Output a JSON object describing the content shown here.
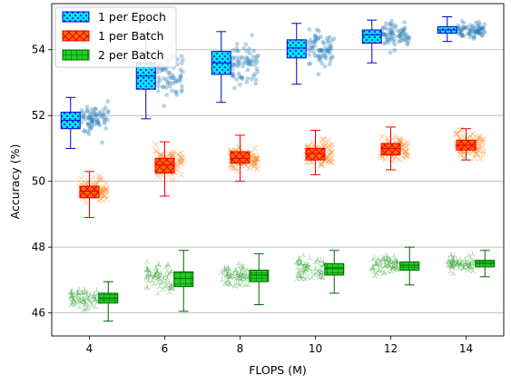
{
  "chart_data": {
    "type": "box",
    "xlabel": "FLOPS (M)",
    "ylabel": "Accuracy (%)",
    "xticks": [
      4,
      6,
      8,
      10,
      12,
      14
    ],
    "yticks": [
      46,
      48,
      50,
      52,
      54
    ],
    "xlim": [
      3,
      15
    ],
    "ylim": [
      45.3,
      55.4
    ],
    "grid": "y",
    "legend_position": "top-left",
    "series": [
      {
        "name": "1 per Epoch",
        "box_color": "#00e5ff",
        "edge_color": "#0000cc",
        "hatch": "dots",
        "scatter_color": "#1f77b4",
        "scatter_marker": "circle",
        "offset": -0.5,
        "boxes": [
          {
            "x": 4,
            "whislo": 51.0,
            "q1": 51.6,
            "med": 51.85,
            "q3": 52.1,
            "whishi": 52.55
          },
          {
            "x": 6,
            "whislo": 51.9,
            "q1": 52.8,
            "med": 53.2,
            "q3": 53.6,
            "whishi": 54.5
          },
          {
            "x": 8,
            "whislo": 52.4,
            "q1": 53.25,
            "med": 53.6,
            "q3": 53.95,
            "whishi": 54.55
          },
          {
            "x": 10,
            "whislo": 52.95,
            "q1": 53.75,
            "med": 54.05,
            "q3": 54.3,
            "whishi": 54.8
          },
          {
            "x": 12,
            "whislo": 53.6,
            "q1": 54.2,
            "med": 54.45,
            "q3": 54.6,
            "whishi": 54.9
          },
          {
            "x": 14,
            "whislo": 54.25,
            "q1": 54.5,
            "med": 54.6,
            "q3": 54.7,
            "whishi": 55.0
          }
        ]
      },
      {
        "name": "1 per Batch",
        "box_color": "#ff6a00",
        "edge_color": "#ee0000",
        "hatch": "crosshatch",
        "scatter_color": "#ff7f0e",
        "scatter_marker": "x",
        "offset": 0,
        "boxes": [
          {
            "x": 4,
            "whislo": 48.9,
            "q1": 49.5,
            "med": 49.7,
            "q3": 49.85,
            "whishi": 50.3
          },
          {
            "x": 6,
            "whislo": 49.55,
            "q1": 50.25,
            "med": 50.5,
            "q3": 50.7,
            "whishi": 51.2
          },
          {
            "x": 8,
            "whislo": 50.0,
            "q1": 50.55,
            "med": 50.7,
            "q3": 50.9,
            "whishi": 51.4
          },
          {
            "x": 10,
            "whislo": 50.2,
            "q1": 50.65,
            "med": 50.85,
            "q3": 51.0,
            "whishi": 51.55
          },
          {
            "x": 12,
            "whislo": 50.35,
            "q1": 50.8,
            "med": 51.0,
            "q3": 51.15,
            "whishi": 51.65
          },
          {
            "x": 14,
            "whislo": 50.65,
            "q1": 50.95,
            "med": 51.1,
            "q3": 51.25,
            "whishi": 51.6
          }
        ]
      },
      {
        "name": "2 per Batch",
        "box_color": "#22cc22",
        "edge_color": "#006600",
        "hatch": "grid",
        "scatter_color": "#2ca02c",
        "scatter_marker": "tri_down",
        "offset": 0.5,
        "boxes": [
          {
            "x": 4,
            "whislo": 45.75,
            "q1": 46.3,
            "med": 46.45,
            "q3": 46.6,
            "whishi": 46.95
          },
          {
            "x": 6,
            "whislo": 46.05,
            "q1": 46.8,
            "med": 47.05,
            "q3": 47.25,
            "whishi": 47.9
          },
          {
            "x": 8,
            "whislo": 46.25,
            "q1": 46.95,
            "med": 47.15,
            "q3": 47.3,
            "whishi": 47.8
          },
          {
            "x": 10,
            "whislo": 46.6,
            "q1": 47.15,
            "med": 47.35,
            "q3": 47.5,
            "whishi": 47.9
          },
          {
            "x": 12,
            "whislo": 46.85,
            "q1": 47.3,
            "med": 47.45,
            "q3": 47.55,
            "whishi": 48.0
          },
          {
            "x": 14,
            "whislo": 47.1,
            "q1": 47.4,
            "med": 47.5,
            "q3": 47.6,
            "whishi": 47.9
          }
        ]
      }
    ]
  }
}
